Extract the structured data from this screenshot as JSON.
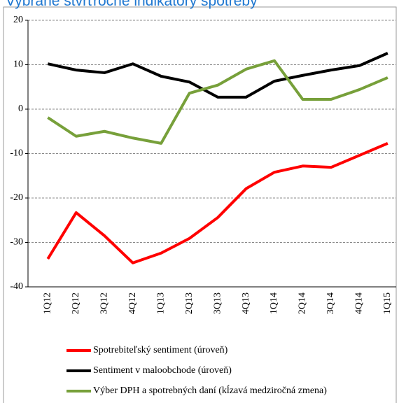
{
  "chart_data": {
    "type": "line",
    "title": "Vybrané štvrťročné indikátory spotreby",
    "categories": [
      "1Q12",
      "2Q12",
      "3Q12",
      "4Q12",
      "1Q13",
      "2Q13",
      "3Q13",
      "4Q13",
      "1Q14",
      "2Q14",
      "3Q14",
      "4Q14",
      "1Q15"
    ],
    "series": [
      {
        "name": "Spotrebiteľský sentiment (úroveň)",
        "color": "#ff0000",
        "values": [
          -33.7,
          -23.3,
          -28.5,
          -34.6,
          -32.4,
          -29.1,
          -24.4,
          -17.9,
          -14.2,
          -12.8,
          -13.1,
          -10.4,
          -7.7
        ]
      },
      {
        "name": "Sentiment v maloobchode (úroveň)",
        "color": "#000000",
        "values": [
          10.2,
          8.8,
          8.2,
          10.2,
          7.4,
          6.1,
          2.7,
          2.7,
          6.3,
          7.6,
          8.8,
          9.8,
          12.6
        ]
      },
      {
        "name": "Výber DPH a spotrebných daní (kĺzavá medziročná  zmena)",
        "color": "#77a03a",
        "values": [
          -1.9,
          -6.1,
          -5.0,
          -6.5,
          -7.7,
          3.6,
          5.4,
          9.0,
          10.9,
          2.2,
          2.2,
          4.4,
          7.1
        ]
      }
    ],
    "ylim": [
      -40,
      20
    ],
    "yticks": [
      -40,
      -30,
      -20,
      -10,
      0,
      10,
      20
    ],
    "grid": true
  }
}
